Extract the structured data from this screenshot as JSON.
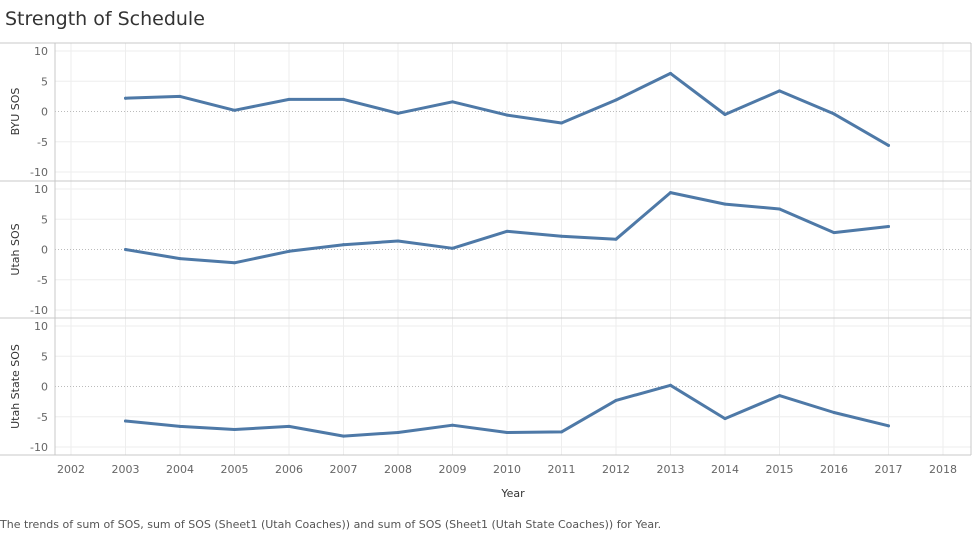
{
  "title": "Strength of Schedule",
  "caption": "The trends of sum of SOS, sum of SOS (Sheet1 (Utah Coaches)) and sum of SOS (Sheet1 (Utah State Coaches)) for Year.",
  "colors": {
    "line": "#4e79a7",
    "axis_text": "#666666",
    "grid": "#eeeeee",
    "divider": "#c8c8c8",
    "zero_line": "#bbbbbb"
  },
  "chart_data": {
    "type": "line",
    "title": "Strength of Schedule",
    "xlabel": "Year",
    "x_ticks": [
      "2002",
      "2003",
      "2004",
      "2005",
      "2006",
      "2007",
      "2008",
      "2009",
      "2010",
      "2011",
      "2012",
      "2013",
      "2014",
      "2015",
      "2016",
      "2017",
      "2018"
    ],
    "xlim": [
      2002,
      2018
    ],
    "x": [
      2003,
      2004,
      2005,
      2006,
      2007,
      2008,
      2009,
      2010,
      2011,
      2012,
      2013,
      2014,
      2015,
      2016,
      2017
    ],
    "grid": true,
    "panels": [
      {
        "ylabel": "BYU SOS",
        "ylim": [
          -10,
          10
        ],
        "y_ticks": [
          "10",
          "5",
          "0",
          "-5",
          "-10"
        ],
        "values": [
          2.2,
          2.5,
          0.2,
          2.0,
          2.0,
          -0.3,
          1.6,
          -0.6,
          -1.9,
          1.9,
          6.3,
          -0.5,
          3.4,
          -0.4,
          -5.6
        ]
      },
      {
        "ylabel": "Utah SOS",
        "ylim": [
          -10,
          10
        ],
        "y_ticks": [
          "10",
          "5",
          "0",
          "-5",
          "-10"
        ],
        "values": [
          0.0,
          -1.5,
          -2.2,
          -0.3,
          0.8,
          1.4,
          0.2,
          3.0,
          2.2,
          1.7,
          9.4,
          7.5,
          6.7,
          2.8,
          3.8
        ]
      },
      {
        "ylabel": "Utah State SOS",
        "ylim": [
          -10,
          10
        ],
        "y_ticks": [
          "10",
          "5",
          "0",
          "-5",
          "-10"
        ],
        "values": [
          -5.7,
          -6.6,
          -7.1,
          -6.6,
          -8.2,
          -7.6,
          -6.4,
          -7.6,
          -7.5,
          -2.3,
          0.2,
          -5.3,
          -1.5,
          -4.3,
          -6.5
        ]
      }
    ]
  }
}
